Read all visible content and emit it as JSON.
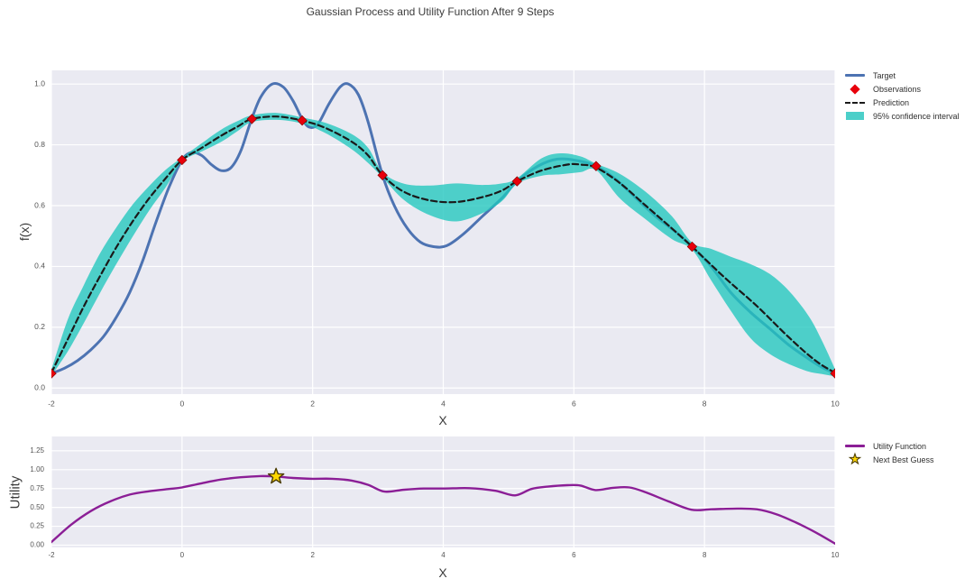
{
  "title": "Gaussian Process and Utility Function After 9 Steps",
  "colors": {
    "plot_background": "#eaeaf2",
    "grid": "#ffffff",
    "target_blue": "#4d73b2",
    "prediction_black": "#1a1a1a",
    "confidence_cyan": "#20c7be",
    "observation_red": "#e8000b",
    "utility_purple": "#8b1e96",
    "star_gold": "#ffd700",
    "star_edge": "#4a3b00",
    "tick_text": "#545454"
  },
  "chart_data": [
    {
      "id": "gp",
      "type": "line",
      "xlabel": "X",
      "ylabel": "f(x)",
      "xlim": [
        -2,
        10
      ],
      "ylim": [
        -0.02,
        1.045
      ],
      "grid": true,
      "legend_position": "outside-top-right",
      "x_ticks": [
        {
          "v": -2,
          "label": "-2"
        },
        {
          "v": 0,
          "label": "0"
        },
        {
          "v": 2,
          "label": "2"
        },
        {
          "v": 4,
          "label": "4"
        },
        {
          "v": 6,
          "label": "6"
        },
        {
          "v": 8,
          "label": "8"
        },
        {
          "v": 10,
          "label": "10"
        }
      ],
      "y_ticks": [
        {
          "v": 0.0,
          "label": "0.0"
        },
        {
          "v": 0.2,
          "label": "0.2"
        },
        {
          "v": 0.4,
          "label": "0.4"
        },
        {
          "v": 0.6,
          "label": "0.6"
        },
        {
          "v": 0.8,
          "label": "0.8"
        },
        {
          "v": 1.0,
          "label": "1.0"
        }
      ],
      "legend": [
        {
          "label": "Target",
          "swatch": "line",
          "color": "#4d73b2"
        },
        {
          "label": "Observations",
          "swatch": "diamond",
          "color": "#e8000b"
        },
        {
          "label": "Prediction",
          "swatch": "dashed-line",
          "color": "#1a1a1a"
        },
        {
          "label": "95% confidence interval",
          "swatch": "patch",
          "color": "#4ccfc9"
        }
      ],
      "series": [
        {
          "name": "Target",
          "type": "line",
          "color": "#4d73b2",
          "width": 3,
          "points": [
            [
              -2,
              0.048
            ],
            [
              -1.8,
              0.065
            ],
            [
              -1.6,
              0.09
            ],
            [
              -1.4,
              0.125
            ],
            [
              -1.2,
              0.17
            ],
            [
              -1,
              0.235
            ],
            [
              -0.8,
              0.315
            ],
            [
              -0.6,
              0.42
            ],
            [
              -0.4,
              0.545
            ],
            [
              -0.2,
              0.66
            ],
            [
              0,
              0.75
            ],
            [
              0.15,
              0.775
            ],
            [
              0.3,
              0.765
            ],
            [
              0.45,
              0.735
            ],
            [
              0.6,
              0.715
            ],
            [
              0.75,
              0.725
            ],
            [
              0.9,
              0.78
            ],
            [
              1.05,
              0.875
            ],
            [
              1.2,
              0.955
            ],
            [
              1.38,
              1.0
            ],
            [
              1.55,
              0.99
            ],
            [
              1.7,
              0.945
            ],
            [
              1.84,
              0.885
            ],
            [
              1.95,
              0.858
            ],
            [
              2.08,
              0.868
            ],
            [
              2.25,
              0.935
            ],
            [
              2.42,
              0.99
            ],
            [
              2.55,
              1.0
            ],
            [
              2.7,
              0.965
            ],
            [
              2.85,
              0.875
            ],
            [
              3.07,
              0.7
            ],
            [
              3.25,
              0.6
            ],
            [
              3.45,
              0.525
            ],
            [
              3.65,
              0.48
            ],
            [
              3.85,
              0.465
            ],
            [
              4.05,
              0.468
            ],
            [
              4.3,
              0.505
            ],
            [
              4.6,
              0.565
            ],
            [
              4.9,
              0.625
            ],
            [
              5.13,
              0.68
            ],
            [
              5.45,
              0.73
            ],
            [
              5.75,
              0.753
            ],
            [
              6.05,
              0.748
            ],
            [
              6.34,
              0.73
            ],
            [
              6.65,
              0.685
            ],
            [
              6.95,
              0.625
            ],
            [
              7.25,
              0.565
            ],
            [
              7.55,
              0.515
            ],
            [
              7.81,
              0.465
            ],
            [
              8.1,
              0.4
            ],
            [
              8.4,
              0.315
            ],
            [
              8.7,
              0.25
            ],
            [
              9,
              0.195
            ],
            [
              9.3,
              0.14
            ],
            [
              9.6,
              0.095
            ],
            [
              9.8,
              0.068
            ],
            [
              10,
              0.048
            ]
          ]
        },
        {
          "name": "95% confidence interval",
          "type": "band",
          "color": "#20c7be",
          "opacity": 0.78,
          "points": [
            [
              -2,
              0.04,
              0.06
            ],
            [
              -1.75,
              0.12,
              0.225
            ],
            [
              -1.5,
              0.215,
              0.34
            ],
            [
              -1.25,
              0.315,
              0.445
            ],
            [
              -1,
              0.41,
              0.53
            ],
            [
              -0.75,
              0.5,
              0.605
            ],
            [
              -0.5,
              0.585,
              0.665
            ],
            [
              -0.25,
              0.66,
              0.718
            ],
            [
              0,
              0.744,
              0.758
            ],
            [
              0.3,
              0.778,
              0.805
            ],
            [
              0.6,
              0.81,
              0.85
            ],
            [
              0.85,
              0.845,
              0.878
            ],
            [
              1.07,
              0.875,
              0.897
            ],
            [
              1.45,
              0.882,
              0.905
            ],
            [
              1.84,
              0.87,
              0.89
            ],
            [
              2.2,
              0.838,
              0.872
            ],
            [
              2.6,
              0.785,
              0.835
            ],
            [
              2.85,
              0.74,
              0.79
            ],
            [
              3.07,
              0.693,
              0.71
            ],
            [
              3.4,
              0.618,
              0.672
            ],
            [
              3.8,
              0.568,
              0.666
            ],
            [
              4.2,
              0.548,
              0.673
            ],
            [
              4.6,
              0.575,
              0.668
            ],
            [
              4.9,
              0.615,
              0.673
            ],
            [
              5.13,
              0.672,
              0.69
            ],
            [
              5.5,
              0.698,
              0.755
            ],
            [
              5.8,
              0.703,
              0.772
            ],
            [
              6.1,
              0.71,
              0.762
            ],
            [
              6.34,
              0.717,
              0.738
            ],
            [
              6.7,
              0.625,
              0.705
            ],
            [
              7.1,
              0.555,
              0.645
            ],
            [
              7.5,
              0.49,
              0.565
            ],
            [
              7.81,
              0.455,
              0.478
            ],
            [
              8.1,
              0.355,
              0.458
            ],
            [
              8.4,
              0.255,
              0.432
            ],
            [
              8.7,
              0.165,
              0.408
            ],
            [
              9,
              0.112,
              0.375
            ],
            [
              9.3,
              0.078,
              0.318
            ],
            [
              9.6,
              0.054,
              0.235
            ],
            [
              9.8,
              0.046,
              0.155
            ],
            [
              10,
              0.038,
              0.062
            ]
          ]
        },
        {
          "name": "Prediction",
          "type": "dashed-line",
          "color": "#1a1a1a",
          "width": 2.2,
          "points": [
            [
              -2,
              0.05
            ],
            [
              -1.75,
              0.16
            ],
            [
              -1.5,
              0.27
            ],
            [
              -1.25,
              0.37
            ],
            [
              -1,
              0.465
            ],
            [
              -0.75,
              0.55
            ],
            [
              -0.5,
              0.625
            ],
            [
              -0.25,
              0.69
            ],
            [
              0,
              0.75
            ],
            [
              0.3,
              0.79
            ],
            [
              0.6,
              0.83
            ],
            [
              0.85,
              0.86
            ],
            [
              1.07,
              0.885
            ],
            [
              1.45,
              0.893
            ],
            [
              1.84,
              0.88
            ],
            [
              2.2,
              0.855
            ],
            [
              2.6,
              0.81
            ],
            [
              2.85,
              0.765
            ],
            [
              3.07,
              0.7
            ],
            [
              3.4,
              0.645
            ],
            [
              3.8,
              0.617
            ],
            [
              4.2,
              0.612
            ],
            [
              4.6,
              0.628
            ],
            [
              4.9,
              0.65
            ],
            [
              5.13,
              0.68
            ],
            [
              5.5,
              0.715
            ],
            [
              5.9,
              0.735
            ],
            [
              6.1,
              0.735
            ],
            [
              6.34,
              0.725
            ],
            [
              6.7,
              0.675
            ],
            [
              7.1,
              0.6
            ],
            [
              7.5,
              0.525
            ],
            [
              7.81,
              0.465
            ],
            [
              8.3,
              0.365
            ],
            [
              8.8,
              0.27
            ],
            [
              9.3,
              0.165
            ],
            [
              9.7,
              0.09
            ],
            [
              10,
              0.05
            ]
          ]
        },
        {
          "name": "Observations",
          "type": "diamond-markers",
          "color": "#e8000b",
          "points": [
            [
              -2,
              0.048
            ],
            [
              0,
              0.75
            ],
            [
              1.07,
              0.885
            ],
            [
              1.84,
              0.88
            ],
            [
              3.07,
              0.7
            ],
            [
              5.13,
              0.68
            ],
            [
              6.34,
              0.73
            ],
            [
              7.81,
              0.465
            ],
            [
              10,
              0.048
            ]
          ]
        }
      ]
    },
    {
      "id": "utility",
      "type": "line",
      "xlabel": "X",
      "ylabel": "Utility",
      "xlim": [
        -2,
        10
      ],
      "ylim": [
        -0.03,
        1.44
      ],
      "grid": true,
      "legend_position": "outside-top-right",
      "x_ticks": [
        {
          "v": -2,
          "label": "-2"
        },
        {
          "v": 0,
          "label": "0"
        },
        {
          "v": 2,
          "label": "2"
        },
        {
          "v": 4,
          "label": "4"
        },
        {
          "v": 6,
          "label": "6"
        },
        {
          "v": 8,
          "label": "8"
        },
        {
          "v": 10,
          "label": "10"
        }
      ],
      "y_ticks": [
        {
          "v": 0.0,
          "label": "0.00"
        },
        {
          "v": 0.25,
          "label": "0.25"
        },
        {
          "v": 0.5,
          "label": "0.50"
        },
        {
          "v": 0.75,
          "label": "0.75"
        },
        {
          "v": 1.0,
          "label": "1.00"
        },
        {
          "v": 1.25,
          "label": "1.25"
        }
      ],
      "legend": [
        {
          "label": "Utility Function",
          "swatch": "line",
          "color": "#8b1e96"
        },
        {
          "label": "Next Best Guess",
          "swatch": "star",
          "color": "#ffd700"
        }
      ],
      "series": [
        {
          "name": "Utility Function",
          "type": "line",
          "color": "#8b1e96",
          "width": 2.4,
          "points": [
            [
              -2,
              0.04
            ],
            [
              -1.7,
              0.27
            ],
            [
              -1.4,
              0.45
            ],
            [
              -1.1,
              0.58
            ],
            [
              -0.8,
              0.67
            ],
            [
              -0.5,
              0.715
            ],
            [
              -0.2,
              0.745
            ],
            [
              0,
              0.765
            ],
            [
              0.3,
              0.82
            ],
            [
              0.6,
              0.87
            ],
            [
              0.9,
              0.9
            ],
            [
              1.2,
              0.915
            ],
            [
              1.44,
              0.91
            ],
            [
              1.7,
              0.89
            ],
            [
              2,
              0.88
            ],
            [
              2.3,
              0.88
            ],
            [
              2.6,
              0.855
            ],
            [
              2.85,
              0.8
            ],
            [
              3.1,
              0.71
            ],
            [
              3.4,
              0.735
            ],
            [
              3.7,
              0.75
            ],
            [
              4,
              0.75
            ],
            [
              4.4,
              0.755
            ],
            [
              4.8,
              0.72
            ],
            [
              5.1,
              0.66
            ],
            [
              5.35,
              0.745
            ],
            [
              5.6,
              0.775
            ],
            [
              5.9,
              0.795
            ],
            [
              6.1,
              0.79
            ],
            [
              6.33,
              0.73
            ],
            [
              6.6,
              0.76
            ],
            [
              6.85,
              0.765
            ],
            [
              7.1,
              0.7
            ],
            [
              7.45,
              0.58
            ],
            [
              7.8,
              0.47
            ],
            [
              8.1,
              0.475
            ],
            [
              8.5,
              0.485
            ],
            [
              8.8,
              0.475
            ],
            [
              9.1,
              0.41
            ],
            [
              9.4,
              0.3
            ],
            [
              9.7,
              0.17
            ],
            [
              10,
              0.02
            ]
          ]
        },
        {
          "name": "Next Best Guess",
          "type": "star-marker",
          "color": "#ffd700",
          "edge_color": "#4a3b00",
          "points": [
            [
              1.44,
              0.91
            ]
          ]
        }
      ]
    }
  ]
}
